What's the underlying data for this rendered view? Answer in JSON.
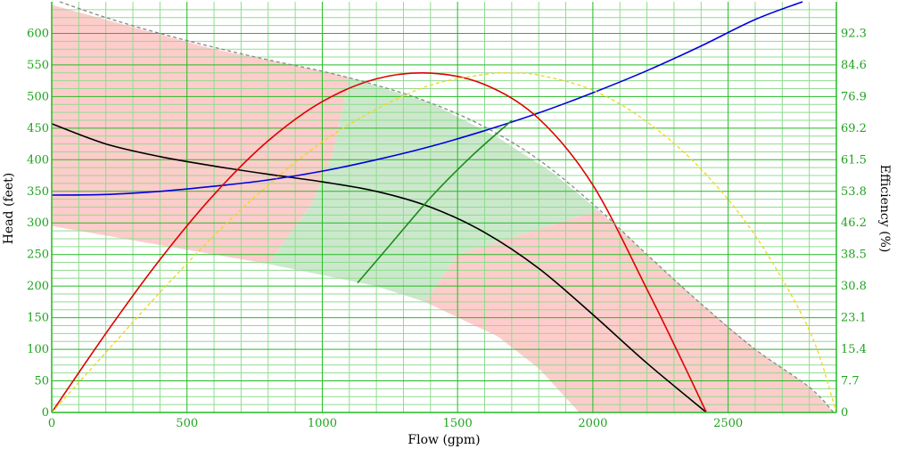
{
  "chart_data": {
    "type": "line",
    "xlabel": "Flow (gpm)",
    "ylabel": "Head (feet)",
    "y2label": "Efficiency (%)",
    "xlim": [
      0,
      2900
    ],
    "ylim": [
      0,
      650
    ],
    "y2lim": [
      0,
      100
    ],
    "x_ticks": [
      0,
      500,
      1000,
      1500,
      2000,
      2500
    ],
    "y_ticks": [
      0,
      50,
      100,
      150,
      200,
      250,
      300,
      350,
      400,
      450,
      500,
      550,
      600
    ],
    "y2_ticks": [
      "0",
      "7.7",
      "15.4",
      "23.1",
      "30.8",
      "38.5",
      "46.2",
      "53.8",
      "61.5",
      "69.2",
      "76.9",
      "84.6",
      "92.3"
    ],
    "grid": true,
    "colors": {
      "grid_major": "#22bb22",
      "grid_minor": "#8fdc8f",
      "tick_text": "#1fa31f",
      "pump_curve": "#000000",
      "system_curve": "#0000dd",
      "efficiency": "#e00000",
      "efficiency_dashed": "#f5d21b",
      "envelope": "#888888",
      "bep_curve": "#1a8c1a",
      "pink_region": "#ffcccc",
      "green_region": "#cce8cc"
    },
    "series": [
      {
        "name": "",
        "style": "solid",
        "color": "#000000",
        "axis": "left",
        "x": [
          0,
          200,
          400,
          600,
          800,
          1000,
          1200,
          1400,
          1600,
          1800,
          2000,
          2200,
          2420
        ],
        "y": [
          457,
          425,
          405,
          390,
          377,
          365,
          350,
          325,
          285,
          228,
          155,
          78,
          0
        ]
      },
      {
        "name": "",
        "style": "solid",
        "color": "#0000dd",
        "axis": "left",
        "x": [
          0,
          200,
          400,
          600,
          800,
          1000,
          1200,
          1400,
          1600,
          1800,
          2000,
          2200,
          2400,
          2600,
          2775
        ],
        "y": [
          344,
          345,
          350,
          358,
          368,
          382,
          400,
          421,
          446,
          474,
          506,
          541,
          580,
          622,
          650
        ]
      },
      {
        "name": "",
        "style": "solid",
        "color": "#e00000",
        "axis": "left",
        "x": [
          0,
          200,
          400,
          600,
          800,
          1000,
          1200,
          1400,
          1600,
          1800,
          2000,
          2200,
          2300,
          2420
        ],
        "y": [
          0,
          125,
          242,
          345,
          430,
          492,
          528,
          537,
          519,
          465,
          360,
          195,
          108,
          0
        ]
      },
      {
        "name": "",
        "style": "dashed",
        "color": "#f5d21b",
        "axis": "left",
        "x": [
          0,
          200,
          400,
          600,
          800,
          1000,
          1200,
          1400,
          1600,
          1700,
          1800,
          2000,
          2200,
          2400,
          2600,
          2800,
          2900
        ],
        "y": [
          0,
          95,
          190,
          280,
          360,
          428,
          480,
          518,
          535,
          537,
          534,
          510,
          460,
          385,
          280,
          130,
          0
        ]
      },
      {
        "name": "",
        "style": "dashed",
        "color": "#888888",
        "axis": "left",
        "x": [
          30,
          200,
          400,
          600,
          800,
          1000,
          1200,
          1400,
          1600,
          1800,
          2000,
          2200,
          2400,
          2600,
          2800,
          2890
        ],
        "y": [
          650,
          625,
          600,
          578,
          558,
          540,
          518,
          490,
          452,
          400,
          330,
          250,
          172,
          100,
          40,
          0
        ]
      },
      {
        "name": "",
        "style": "solid",
        "color": "#1a8c1a",
        "axis": "left",
        "x": [
          1130,
          1250,
          1400,
          1550,
          1700
        ],
        "y": [
          205,
          265,
          340,
          405,
          462
        ]
      }
    ],
    "regions": [
      {
        "color": "#ffcccc",
        "points": [
          [
            0,
            645
          ],
          [
            600,
            575
          ],
          [
            1000,
            540
          ],
          [
            1100,
            530
          ],
          [
            1040,
            410
          ],
          [
            960,
            330
          ],
          [
            800,
            235
          ],
          [
            0,
            295
          ]
        ]
      },
      {
        "color": "#cce8cc",
        "points": [
          [
            1100,
            530
          ],
          [
            1400,
            490
          ],
          [
            1650,
            435
          ],
          [
            1850,
            380
          ],
          [
            2020,
            320
          ],
          [
            1500,
            250
          ],
          [
            1380,
            175
          ],
          [
            1200,
            200
          ],
          [
            800,
            235
          ],
          [
            960,
            330
          ],
          [
            1040,
            410
          ]
        ]
      },
      {
        "color": "#ffcccc",
        "points": [
          [
            2020,
            320
          ],
          [
            2200,
            250
          ],
          [
            2400,
            172
          ],
          [
            2600,
            100
          ],
          [
            2800,
            40
          ],
          [
            2890,
            0
          ],
          [
            1950,
            0
          ],
          [
            1800,
            70
          ],
          [
            1650,
            120
          ],
          [
            1380,
            175
          ],
          [
            1500,
            250
          ]
        ]
      }
    ]
  }
}
